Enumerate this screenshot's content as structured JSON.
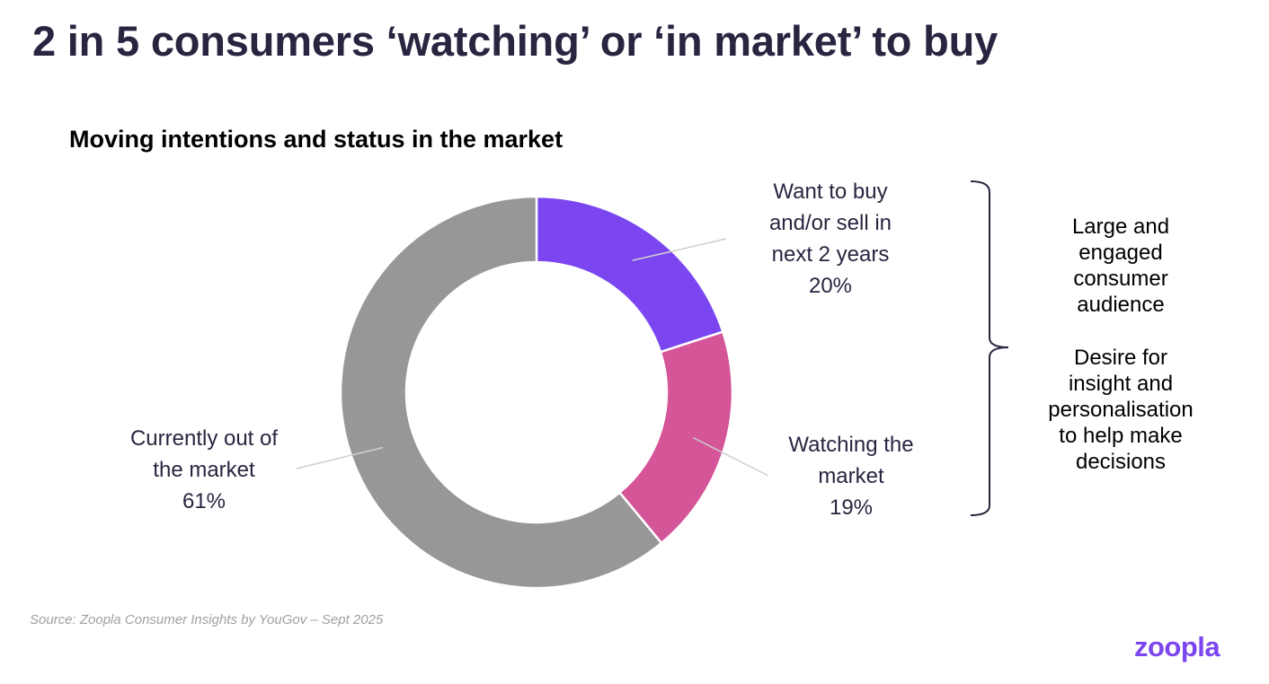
{
  "title": "2 in 5 consumers ‘watching’ or ‘in market’ to buy",
  "chart_data": {
    "type": "pie",
    "title": "Moving intentions and status in the market",
    "donut": true,
    "slices": [
      {
        "lines": [
          "Want to buy",
          "and/or sell in",
          "next 2 years"
        ],
        "value": 20,
        "value_label": "20%",
        "color": "#7b46f0"
      },
      {
        "lines": [
          "Watching the",
          "market"
        ],
        "value": 19,
        "value_label": "19%",
        "color": "#d45598"
      },
      {
        "lines": [
          "Currently out of",
          "the market"
        ],
        "value": 61,
        "value_label": "61%",
        "color": "#979797"
      }
    ]
  },
  "insights": [
    {
      "lines": [
        "Large and",
        "engaged",
        "consumer",
        "audience"
      ]
    },
    {
      "lines": [
        "Desire for",
        "insight and",
        "personalisation",
        "to help make",
        "decisions"
      ]
    }
  ],
  "source": "Source:  Zoopla Consumer Insights by YouGov – Sept 2025",
  "logo": "zoopla",
  "colors": {
    "title": "#2b2440",
    "brand": "#7b46f0",
    "bracket": "#2b2440",
    "leader": "#cfcfcf"
  }
}
